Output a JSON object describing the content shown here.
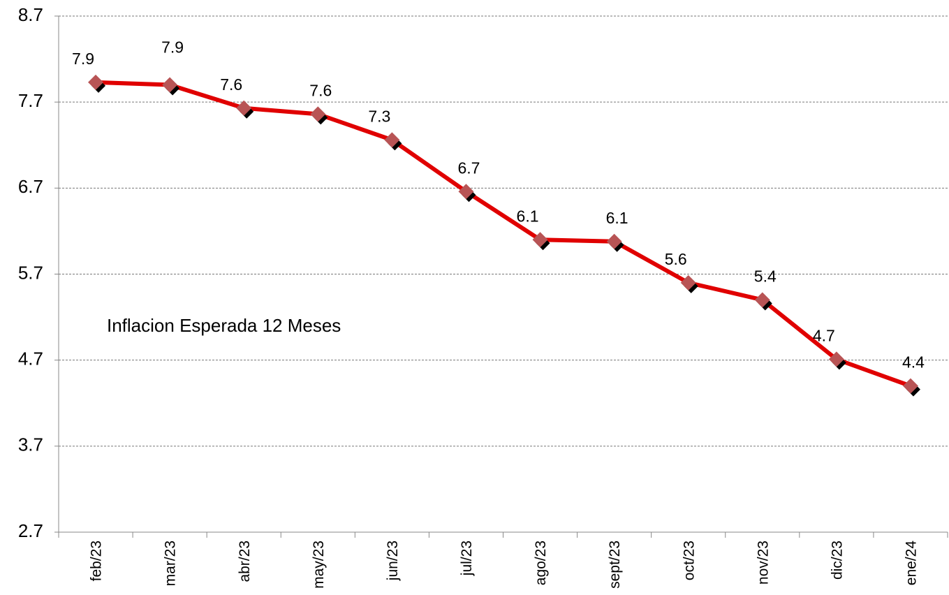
{
  "chart_data": {
    "type": "line",
    "annotation": "Inflacion Esperada 12 Meses",
    "categories": [
      "feb/23",
      "mar/23",
      "abr/23",
      "may/23",
      "jun/23",
      "jul/23",
      "ago/23",
      "sept/23",
      "oct/23",
      "nov/23",
      "dic/23",
      "ene/24"
    ],
    "series": [
      {
        "color": "#e00000",
        "marker_color": "#b85455",
        "values": [
          7.93,
          7.9,
          7.63,
          7.56,
          7.26,
          6.66,
          6.1,
          6.08,
          5.6,
          5.4,
          4.71,
          4.4
        ],
        "value_labels": [
          "7.9",
          "7.9",
          "7.6",
          "7.6",
          "7.3",
          "6.7",
          "6.1",
          "6.1",
          "5.6",
          "5.4",
          "4.7",
          "4.4"
        ]
      }
    ],
    "ylim": [
      2.7,
      8.7
    ],
    "yticks": [
      2.7,
      3.7,
      4.7,
      5.7,
      6.7,
      7.7,
      8.7
    ],
    "grid": true
  }
}
